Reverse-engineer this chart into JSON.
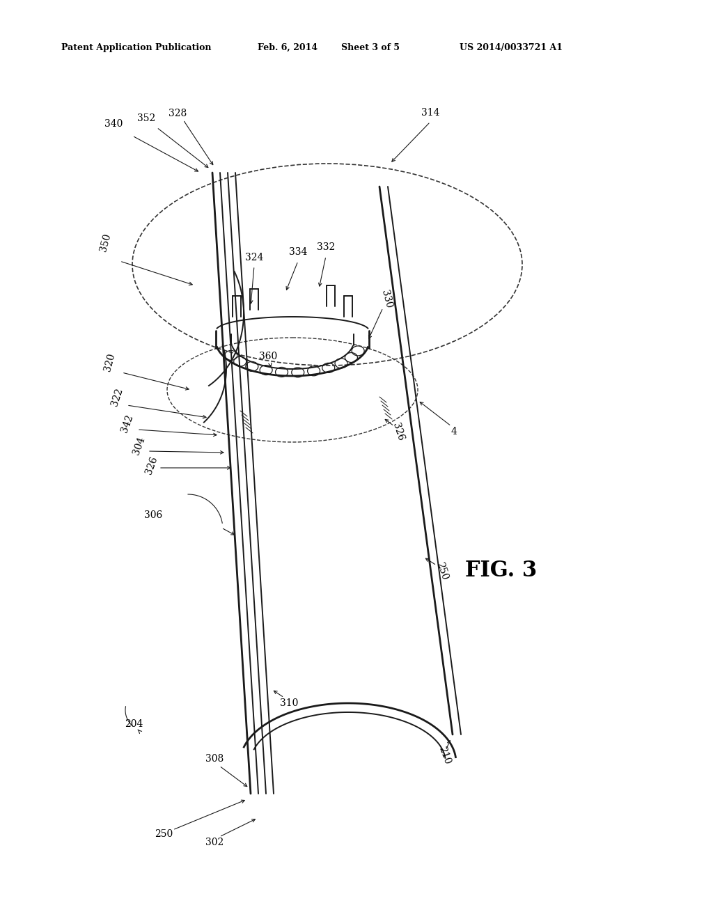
{
  "background_color": "#ffffff",
  "header_text": "Patent Application Publication",
  "header_date": "Feb. 6, 2014",
  "header_sheet": "Sheet 3 of 5",
  "header_patent": "US 2014/0033721 A1",
  "figure_label": "FIG. 3",
  "line_color": "#1a1a1a",
  "dashed_color": "#333333",
  "lw_main": 1.4,
  "lw_thick": 2.0
}
